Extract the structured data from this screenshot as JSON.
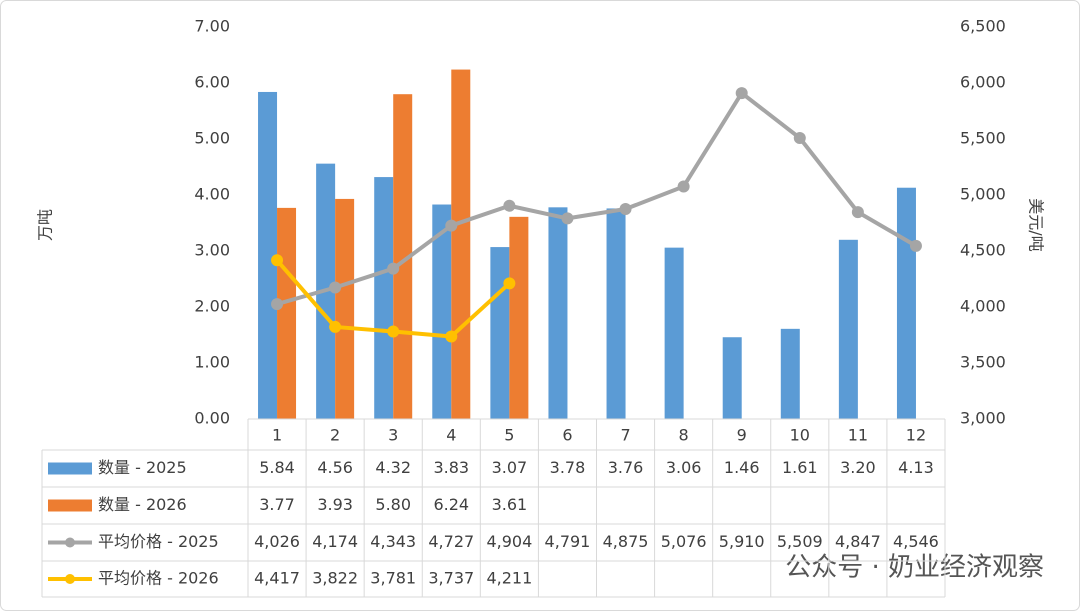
{
  "chart_data": {
    "type": "bar",
    "categories": [
      "1",
      "2",
      "3",
      "4",
      "5",
      "6",
      "7",
      "8",
      "9",
      "10",
      "11",
      "12"
    ],
    "y_label": "万吨",
    "y2_label": "美元/吨",
    "ylim": [
      0,
      7
    ],
    "yticks": [
      {
        "value": 0,
        "label": "0.00"
      },
      {
        "value": 1,
        "label": "1.00"
      },
      {
        "value": 2,
        "label": "2.00"
      },
      {
        "value": 3,
        "label": "3.00"
      },
      {
        "value": 4,
        "label": "4.00"
      },
      {
        "value": 5,
        "label": "5.00"
      },
      {
        "value": 6,
        "label": "6.00"
      },
      {
        "value": 7,
        "label": "7.00"
      }
    ],
    "y2lim": [
      3000,
      6500
    ],
    "y2ticks": [
      {
        "value": 3000,
        "label": "3,000"
      },
      {
        "value": 3500,
        "label": "3,500"
      },
      {
        "value": 4000,
        "label": "4,000"
      },
      {
        "value": 4500,
        "label": "4,500"
      },
      {
        "value": 5000,
        "label": "5,000"
      },
      {
        "value": 5500,
        "label": "5,500"
      },
      {
        "value": 6000,
        "label": "6,000"
      },
      {
        "value": 6500,
        "label": "6,500"
      }
    ],
    "data_table": true,
    "watermark": "公众号 · 奶业经济观察",
    "series": [
      {
        "name": "数量 - 2025",
        "type": "bar",
        "color": "#5b9bd5",
        "values": [
          5.84,
          4.56,
          4.32,
          3.83,
          3.07,
          3.78,
          3.76,
          3.06,
          1.46,
          1.61,
          3.2,
          4.13
        ],
        "value_labels": [
          "5.84",
          "4.56",
          "4.32",
          "3.83",
          "3.07",
          "3.78",
          "3.76",
          "3.06",
          "1.46",
          "1.61",
          "3.20",
          "4.13"
        ]
      },
      {
        "name": "数量 - 2026",
        "type": "bar",
        "color": "#ed7d31",
        "values": [
          3.77,
          3.93,
          5.8,
          6.24,
          3.61,
          null,
          null,
          null,
          null,
          null,
          null,
          null
        ],
        "value_labels": [
          "3.77",
          "3.93",
          "5.80",
          "6.24",
          "3.61",
          null,
          null,
          null,
          null,
          null,
          null,
          null
        ]
      },
      {
        "name": "平均价格 - 2025",
        "type": "line",
        "axis": "y2",
        "color": "#a5a5a5",
        "values": [
          4026,
          4174,
          4343,
          4727,
          4904,
          4791,
          4875,
          5076,
          5910,
          5509,
          4847,
          4546
        ],
        "value_labels": [
          "4,026",
          "4,174",
          "4,343",
          "4,727",
          "4,904",
          "4,791",
          "4,875",
          "5,076",
          "5,910",
          "5,509",
          "4,847",
          "4,546"
        ]
      },
      {
        "name": "平均价格 - 2026",
        "type": "line",
        "axis": "y2",
        "color": "#ffc000",
        "values": [
          4417,
          3822,
          3781,
          3737,
          4211,
          null,
          null,
          null,
          null,
          null,
          null,
          null
        ],
        "value_labels": [
          "4,417",
          "3,822",
          "3,781",
          "3,737",
          "4,211",
          null,
          null,
          null,
          null,
          null,
          null,
          null
        ]
      }
    ]
  }
}
